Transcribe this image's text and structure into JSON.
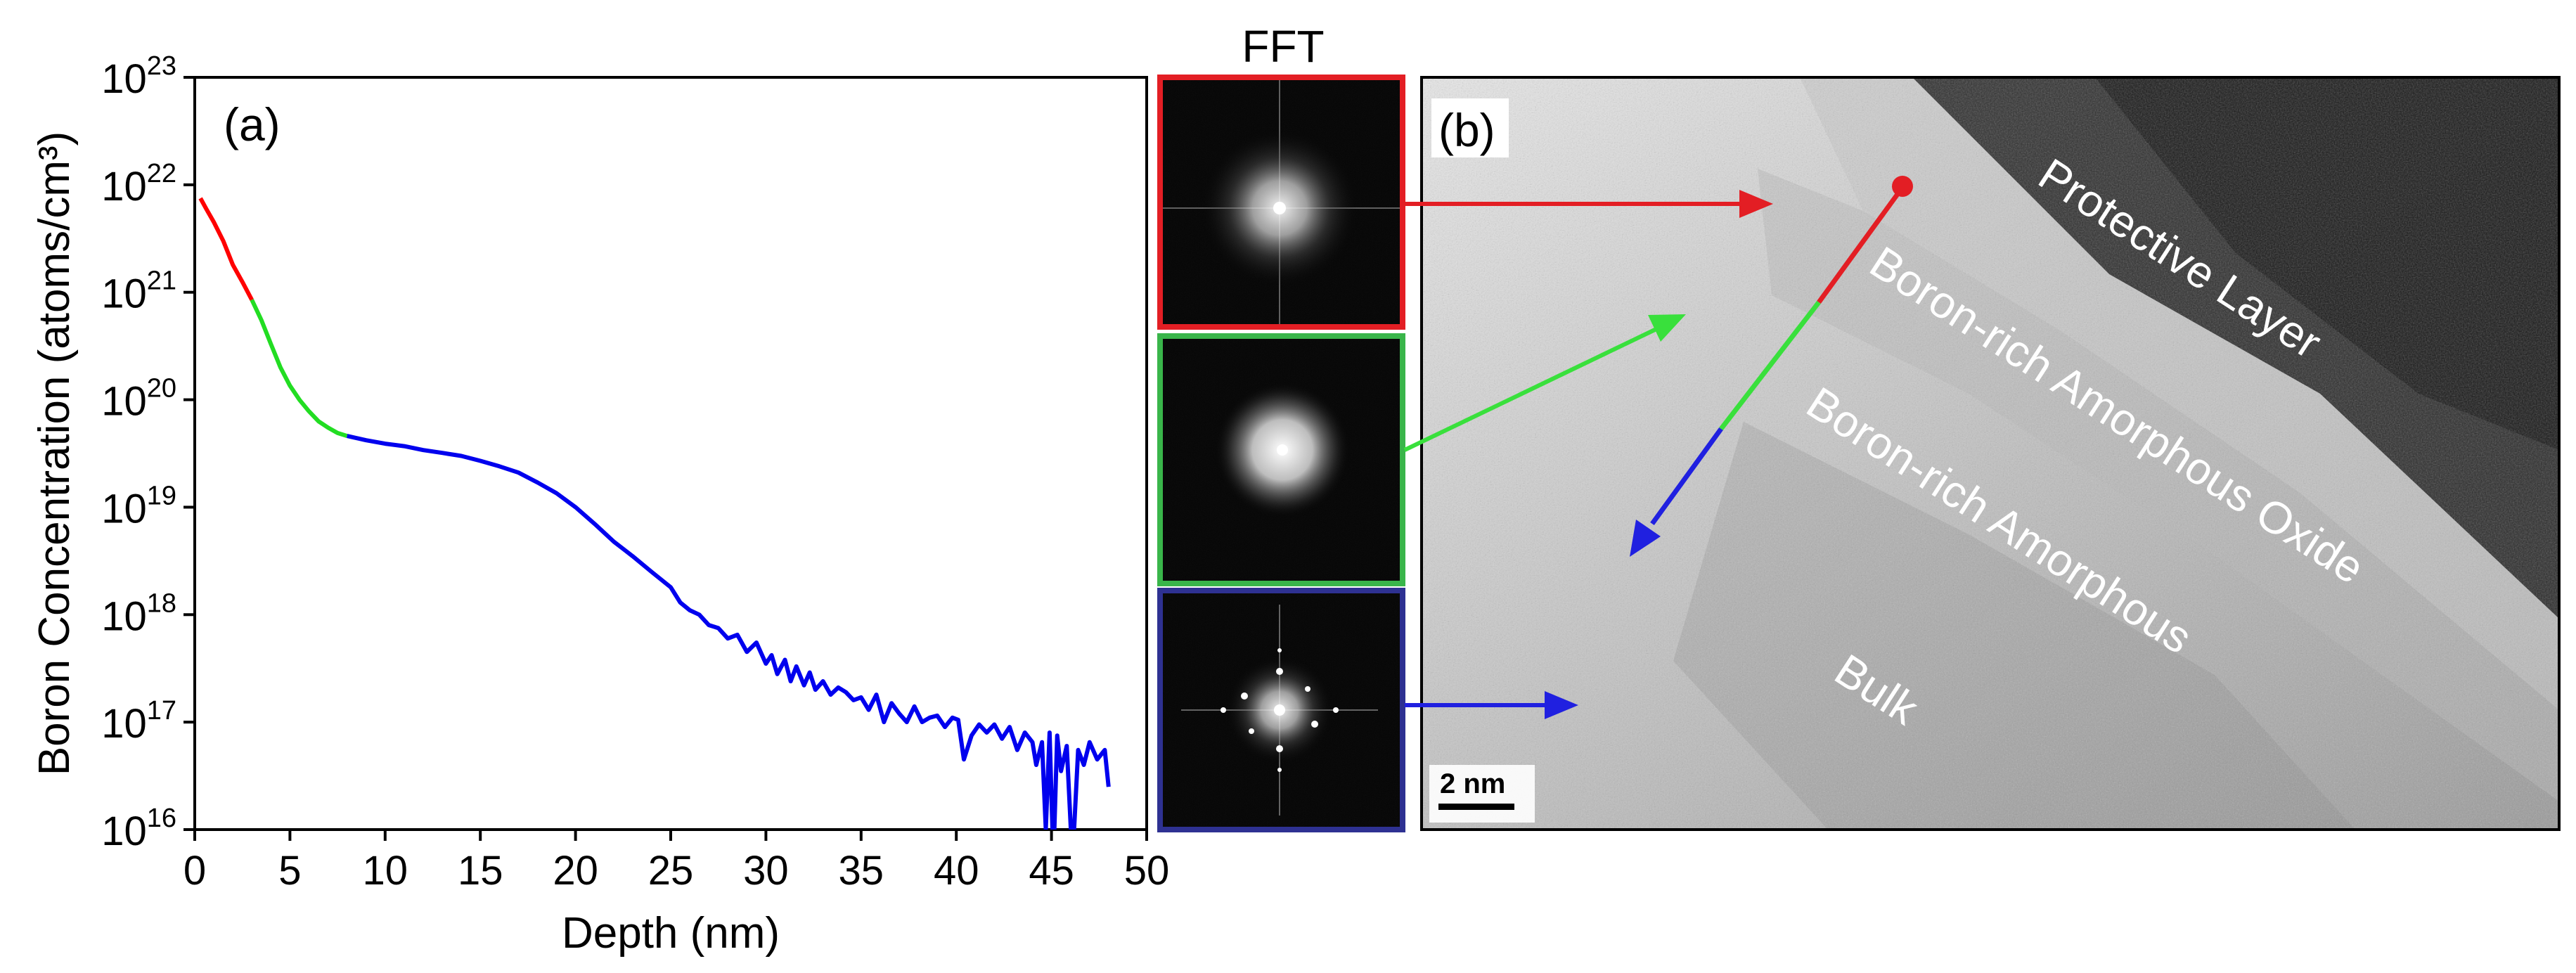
{
  "chart_data": {
    "type": "line",
    "panel_label": "(a)",
    "xlabel": "Depth (nm)",
    "ylabel": "Boron Concentration (atoms/cm³)",
    "xlim": [
      0,
      50
    ],
    "ylim": [
      1e+16,
      1e+23
    ],
    "yscale": "log",
    "grid": false,
    "x_ticks": [
      "0",
      "5",
      "10",
      "15",
      "20",
      "25",
      "30",
      "35",
      "40",
      "45",
      "50"
    ],
    "y_tick_exponents": [
      "16",
      "17",
      "18",
      "19",
      "20",
      "21",
      "22",
      "23"
    ],
    "y_tick_base": "10",
    "series": [
      {
        "color": "#ff0000",
        "x": [
          0.3,
          0.6,
          1.0,
          1.5,
          2.0,
          2.5,
          3.0
        ],
        "y": [
          7.5e+21,
          6e+21,
          4.5e+21,
          3e+21,
          1.8e+21,
          1.25e+21,
          8.5e+20
        ]
      },
      {
        "color": "#22dd22",
        "x": [
          3.0,
          3.5,
          4.0,
          4.5,
          5.0,
          5.5,
          6.0,
          6.5,
          7.0,
          7.5,
          8.0
        ],
        "y": [
          8.5e+20,
          5.5e+20,
          3.3e+20,
          2e+20,
          1.35e+20,
          1e+20,
          7.8e+19,
          6.3e+19,
          5.5e+19,
          4.9e+19,
          4.6e+19
        ]
      },
      {
        "color": "#0000ee",
        "x": [
          8.0,
          9,
          10,
          11,
          12,
          13,
          14,
          15,
          16,
          17,
          18,
          19,
          20,
          21,
          22,
          23,
          24,
          25,
          25.5,
          26,
          26.5,
          27,
          27.5,
          28,
          28.5,
          29,
          29.5,
          30,
          30.3,
          30.6,
          31,
          31.3,
          31.6,
          32,
          32.3,
          32.6,
          33,
          33.4,
          33.8,
          34.2,
          34.6,
          35,
          35.4,
          35.8,
          36.2,
          36.6,
          37,
          37.4,
          37.8,
          38.2,
          38.6,
          39,
          39.4,
          39.8,
          40.1,
          40.4,
          40.8,
          41.2,
          41.6,
          42,
          42.4,
          42.8,
          43.2,
          43.6,
          44,
          44.2,
          44.5,
          44.7,
          44.9,
          45.1,
          45.3,
          45.5,
          45.8,
          46.1,
          46.4,
          46.7,
          47,
          47.4,
          47.8,
          48
        ],
        "y": [
          4.6e+19,
          4.2e+19,
          3.9e+19,
          3.7e+19,
          3.4e+19,
          3.2e+19,
          3e+19,
          2.7e+19,
          2.4e+19,
          2.1e+19,
          1.7e+19,
          1.35e+19,
          1e+19,
          7e+18,
          4.8e+18,
          3.5e+18,
          2.5e+18,
          1.8e+18,
          1.3e+18,
          1.1e+18,
          1e+18,
          8e+17,
          7.5e+17,
          6e+17,
          6.5e+17,
          4.5e+17,
          5.5e+17,
          3.5e+17,
          4.2e+17,
          2.8e+17,
          3.8e+17,
          2.4e+17,
          3.3e+17,
          2.2e+17,
          2.9e+17,
          2e+17,
          2.4e+17,
          1.8e+17,
          2.1e+17,
          1.9e+17,
          1.6e+17,
          1.7e+17,
          1.3e+17,
          1.8e+17,
          1e+17,
          1.5e+17,
          1.2e+17,
          1e+17,
          1.4e+17,
          1e+17,
          1.1e+17,
          1.15e+17,
          9e+16,
          1.1e+17,
          1.05e+17,
          4.5e+16,
          7.5e+16,
          9.5e+16,
          8e+16,
          9.5e+16,
          7e+16,
          9e+16,
          5.5e+16,
          8e+16,
          6.5e+16,
          4e+16,
          6.5e+16,
          1e+16,
          8e+16,
          5000000000000000.0,
          7.5e+16,
          3.5e+16,
          6e+16,
          5000000000000000.0,
          5.5e+16,
          4e+16,
          6.5e+16,
          4.5e+16,
          5.5e+16,
          2.5e+16
        ]
      }
    ]
  },
  "fft": {
    "title": "FFT",
    "panels": [
      {
        "name": "fft-red",
        "color": "#e31e24"
      },
      {
        "name": "fft-green",
        "color": "#39b54a"
      },
      {
        "name": "fft-blue",
        "color": "#2e3192"
      }
    ]
  },
  "tem": {
    "panel_label": "(b)",
    "labels": {
      "protective_layer": "Protective Layer",
      "amorphous_oxide": "Boron-rich Amorphous Oxide",
      "amorphous": "Boron-rich Amorphous",
      "bulk": "Bulk"
    },
    "scale_bar": "2 nm"
  }
}
